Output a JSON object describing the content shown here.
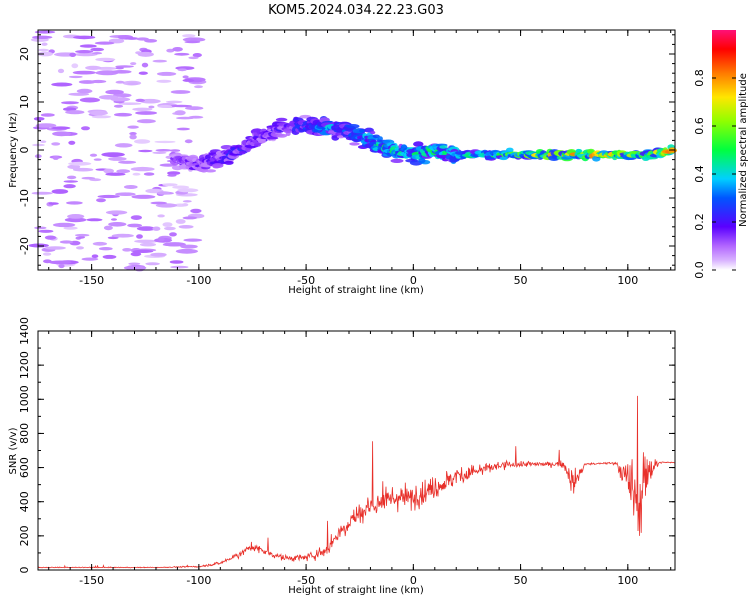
{
  "chart_data": [
    {
      "type": "heatmap",
      "title": "KOM5.2024.034.22.23.G03",
      "xlabel": "Height of straight line (km)",
      "ylabel": "Frequency (Hz)",
      "xlim": [
        -175,
        122
      ],
      "ylim": [
        -25,
        25
      ],
      "xticks": [
        "-150",
        "-100",
        "-50",
        "0",
        "50",
        "100"
      ],
      "xtick_values": [
        -150,
        -100,
        -50,
        0,
        50,
        100
      ],
      "yticks": [
        "-20",
        "-10",
        "0",
        "10",
        "20"
      ],
      "ytick_values": [
        -20,
        -10,
        0,
        10,
        20
      ],
      "colorbar": {
        "label": "Normalized spectral amplitude",
        "range": [
          0,
          1
        ],
        "ticks": [
          "0.0",
          "0.2",
          "0.4",
          "0.6",
          "0.8"
        ],
        "tick_values": [
          0.0,
          0.2,
          0.4,
          0.6,
          0.8
        ],
        "colormap": "gist_rainbow (white at 0)"
      },
      "ridge": {
        "x": [
          -110,
          -100,
          -90,
          -80,
          -70,
          -60,
          -50,
          -40,
          -30,
          -20,
          -10,
          0,
          10,
          20,
          30,
          40,
          50,
          60,
          70,
          80,
          90,
          100,
          110,
          122
        ],
        "freq": [
          -2,
          -3,
          -2,
          0,
          3,
          5,
          5,
          5,
          4,
          2,
          0,
          -1,
          0,
          -1,
          -1,
          -1,
          -1,
          -1,
          -1,
          -1,
          -1,
          -1,
          -1,
          0
        ],
        "amplitude": [
          0.15,
          0.2,
          0.22,
          0.25,
          0.2,
          0.22,
          0.28,
          0.4,
          0.3,
          0.45,
          0.5,
          0.45,
          0.5,
          0.45,
          0.5,
          0.5,
          0.65,
          0.7,
          0.75,
          0.85,
          0.8,
          0.7,
          0.6,
          0.95
        ]
      },
      "noise_region": {
        "x_range": [
          -175,
          -100
        ],
        "freq_range": [
          -25,
          25
        ],
        "amplitude": 0.05
      }
    },
    {
      "type": "line",
      "xlabel": "Height of straight line (km)",
      "ylabel": "SNR (v/v)",
      "xlim": [
        -175,
        122
      ],
      "ylim": [
        0,
        1400
      ],
      "xticks": [
        "-150",
        "-100",
        "-50",
        "0",
        "50",
        "100"
      ],
      "xtick_values": [
        -150,
        -100,
        -50,
        0,
        50,
        100
      ],
      "yticks": [
        "0",
        "200",
        "400",
        "600",
        "800",
        "1000",
        "1200",
        "1400"
      ],
      "ytick_values": [
        0,
        200,
        400,
        600,
        800,
        1000,
        1200,
        1400
      ],
      "series_color": "#e8302a",
      "envelope": {
        "x": [
          -175,
          -150,
          -120,
          -100,
          -90,
          -80,
          -75,
          -70,
          -60,
          -50,
          -40,
          -35,
          -30,
          -20,
          -10,
          0,
          10,
          20,
          30,
          40,
          50,
          60,
          70,
          75,
          80,
          90,
          95,
          100,
          105,
          110,
          115,
          122
        ],
        "y": [
          15,
          15,
          15,
          20,
          40,
          100,
          140,
          110,
          70,
          70,
          120,
          220,
          280,
          380,
          420,
          430,
          480,
          550,
          580,
          610,
          620,
          620,
          620,
          500,
          620,
          625,
          625,
          500,
          400,
          600,
          630,
          630
        ],
        "noise": [
          5,
          5,
          5,
          10,
          20,
          50,
          60,
          50,
          40,
          50,
          90,
          120,
          150,
          170,
          170,
          170,
          160,
          140,
          110,
          70,
          40,
          30,
          40,
          200,
          15,
          15,
          20,
          350,
          600,
          300,
          10,
          10
        ]
      }
    }
  ]
}
